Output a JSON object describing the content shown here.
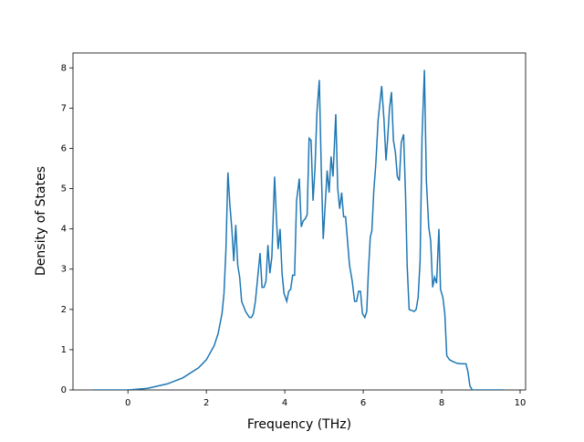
{
  "chart_data": {
    "type": "line",
    "xlabel": "Frequency (THz)",
    "ylabel": "Density of States",
    "xlim": [
      -1.4,
      10.14
    ],
    "ylim": [
      0,
      8.37
    ],
    "xticks": [
      0,
      2,
      4,
      6,
      8,
      10
    ],
    "yticks": [
      0,
      1,
      2,
      3,
      4,
      5,
      6,
      7,
      8
    ],
    "series": [
      {
        "color": "#1f77b4",
        "x": [
          -0.88,
          0,
          0.5,
          1,
          1.4,
          1.8,
          2.0,
          2.2,
          2.3,
          2.4,
          2.45,
          2.5,
          2.55,
          2.6,
          2.65,
          2.7,
          2.75,
          2.8,
          2.85,
          2.9,
          3.0,
          3.1,
          3.15,
          3.2,
          3.25,
          3.3,
          3.37,
          3.42,
          3.47,
          3.52,
          3.57,
          3.62,
          3.67,
          3.74,
          3.79,
          3.83,
          3.88,
          3.93,
          3.98,
          4.05,
          4.1,
          4.15,
          4.2,
          4.25,
          4.3,
          4.37,
          4.42,
          4.47,
          4.52,
          4.57,
          4.62,
          4.67,
          4.72,
          4.77,
          4.82,
          4.88,
          4.93,
          4.98,
          5.03,
          5.08,
          5.13,
          5.18,
          5.23,
          5.3,
          5.35,
          5.4,
          5.45,
          5.5,
          5.55,
          5.6,
          5.65,
          5.72,
          5.78,
          5.83,
          5.88,
          5.93,
          5.98,
          6.04,
          6.09,
          6.13,
          6.18,
          6.22,
          6.27,
          6.32,
          6.38,
          6.47,
          6.53,
          6.58,
          6.62,
          6.67,
          6.72,
          6.77,
          6.82,
          6.87,
          6.92,
          6.97,
          7.03,
          7.08,
          7.12,
          7.17,
          7.22,
          7.3,
          7.35,
          7.4,
          7.45,
          7.5,
          7.56,
          7.61,
          7.67,
          7.72,
          7.77,
          7.82,
          7.87,
          7.93,
          7.97,
          8.03,
          8.08,
          8.13,
          8.2,
          8.3,
          8.4,
          8.5,
          8.62,
          8.67,
          8.72,
          8.78,
          9.6
        ],
        "values": [
          0,
          0,
          0.04,
          0.15,
          0.3,
          0.55,
          0.75,
          1.1,
          1.4,
          1.9,
          2.4,
          3.5,
          5.4,
          4.6,
          4.0,
          3.2,
          4.1,
          3.1,
          2.8,
          2.2,
          1.95,
          1.8,
          1.8,
          1.9,
          2.2,
          2.7,
          3.4,
          2.55,
          2.55,
          2.7,
          3.6,
          2.9,
          3.3,
          5.3,
          4.2,
          3.5,
          4.0,
          2.9,
          2.4,
          2.2,
          2.45,
          2.5,
          2.85,
          2.85,
          4.7,
          5.25,
          4.05,
          4.2,
          4.25,
          4.35,
          6.25,
          6.2,
          4.7,
          5.5,
          6.9,
          7.7,
          5.5,
          3.75,
          4.6,
          5.45,
          4.9,
          5.8,
          5.3,
          6.85,
          5.0,
          4.5,
          4.9,
          4.3,
          4.3,
          3.7,
          3.1,
          2.7,
          2.2,
          2.2,
          2.45,
          2.45,
          1.9,
          1.8,
          1.95,
          2.9,
          3.8,
          3.95,
          4.95,
          5.6,
          6.7,
          7.55,
          6.7,
          5.7,
          6.2,
          7.0,
          7.4,
          6.2,
          5.9,
          5.3,
          5.2,
          6.15,
          6.35,
          4.8,
          3.1,
          2.0,
          1.98,
          1.95,
          2.0,
          2.3,
          3.2,
          6.3,
          7.95,
          5.2,
          4.05,
          3.7,
          2.55,
          2.8,
          2.65,
          4.0,
          2.5,
          2.3,
          1.9,
          0.85,
          0.75,
          0.7,
          0.66,
          0.65,
          0.65,
          0.45,
          0.1,
          0,
          0
        ]
      }
    ]
  }
}
